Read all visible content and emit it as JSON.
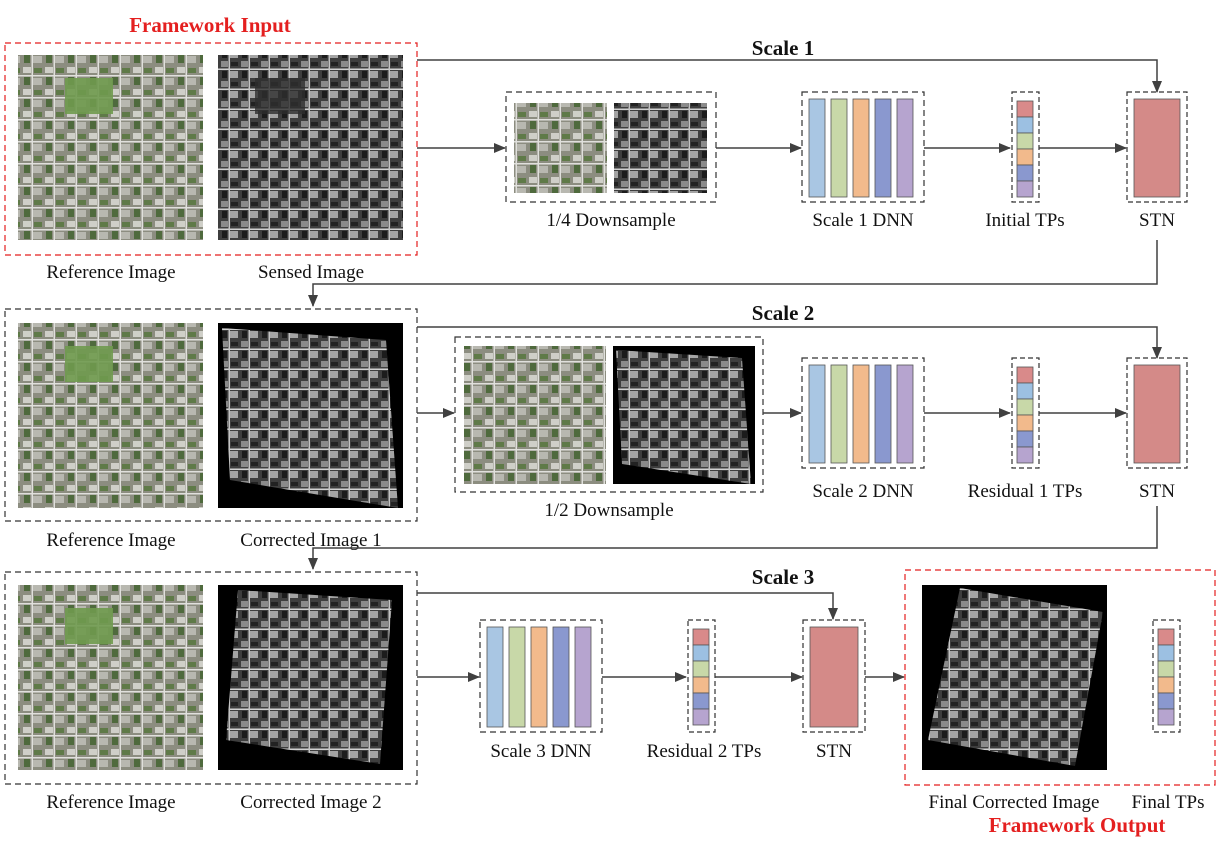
{
  "framework_input_title": "Framework Input",
  "framework_output_title": "Framework Output",
  "scale_titles": [
    "Scale 1",
    "Scale 2",
    "Scale 3"
  ],
  "labels": {
    "reference_image": "Reference Image",
    "sensed_image": "Sensed Image",
    "corrected_image_1": "Corrected Image 1",
    "corrected_image_2": "Corrected Image 2",
    "final_corrected_image": "Final Corrected Image",
    "final_tps": "Final TPs",
    "downsample_quarter": "1/4 Downsample",
    "downsample_half": "1/2 Downsample",
    "scale1_dnn": "Scale 1 DNN",
    "scale2_dnn": "Scale 2 DNN",
    "scale3_dnn": "Scale 3 DNN",
    "initial_tps": "Initial TPs",
    "residual1_tps": "Residual 1 TPs",
    "residual2_tps": "Residual 2 TPs",
    "stn": "STN"
  },
  "colors": {
    "dnn_layers": [
      "#a9c6e3",
      "#c8d8a8",
      "#f2ba8c",
      "#8a98cf",
      "#b6a4cf"
    ],
    "tp_stack": [
      "#d98a8a",
      "#9cc0e2",
      "#c8d8a8",
      "#f2ba8c",
      "#8a98cf",
      "#b6a4cf"
    ],
    "stn_fill": "#d48a88",
    "accent_red": "#e41f1f",
    "satellite_green": "#6a8a52",
    "sensed_gray": "#5a5a5a"
  }
}
